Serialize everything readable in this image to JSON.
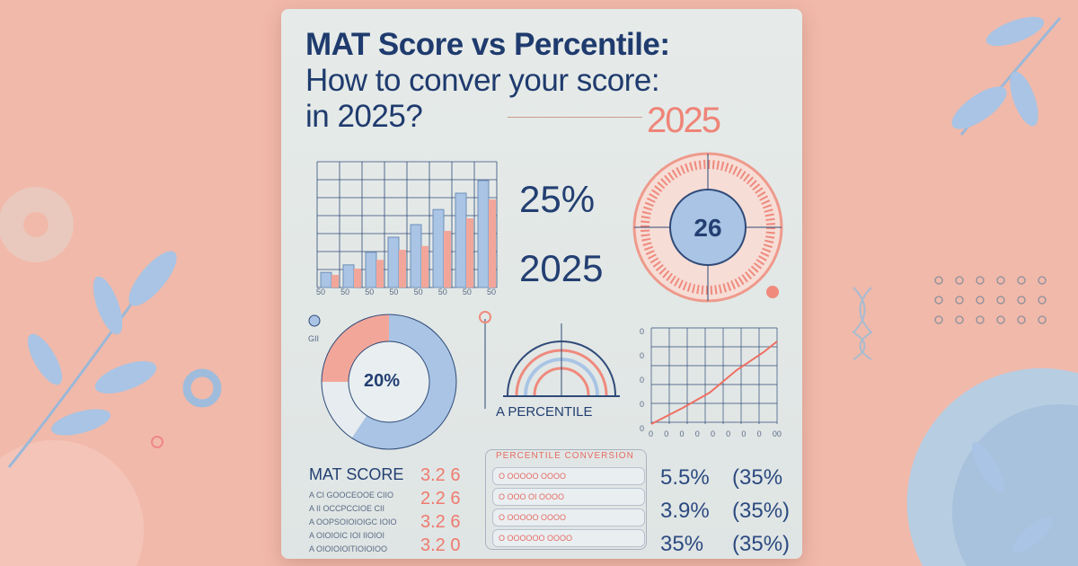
{
  "title": {
    "line1": "MAT Score vs Percentile:",
    "line2": "How to conver your score:",
    "line3": "in  2025?",
    "badge_year": "2025"
  },
  "bar_chart": {
    "x_tick_labels": [
      "50",
      "50",
      "50",
      "50",
      "50",
      "50",
      "50",
      "50"
    ],
    "blue_levels": [
      0.12,
      0.18,
      0.28,
      0.4,
      0.5,
      0.62,
      0.75,
      0.85
    ],
    "pink_levels": [
      0.1,
      0.15,
      0.22,
      0.3,
      0.33,
      0.45,
      0.55,
      0.7
    ]
  },
  "stats": {
    "percent": "25%",
    "year": "2025"
  },
  "gauge": {
    "value": "26"
  },
  "donut": {
    "value": "20%",
    "label": "GII"
  },
  "arc": {
    "label": "A PERCENTILE"
  },
  "line_chart": {
    "x_tick_labels": [
      "0",
      "0",
      "0",
      "0",
      "0",
      "0",
      "0",
      "0",
      "00"
    ],
    "y_tick_labels": [
      "0",
      "0",
      "0",
      "0",
      "0"
    ]
  },
  "mat_score": {
    "heading": "MAT SCORE",
    "rows": [
      "A  CI GOOCEOOE CIIO",
      "A  II OCCPCCIOE CII",
      "A  OOPSOIOIOIGC IOIO",
      "A  OIOIOIC IOI IIOIOI",
      "A  OIOIOIOITIOIOIOO"
    ],
    "values": [
      "3.2 6",
      "2.2 6",
      "3.2 6",
      "3.2 0"
    ]
  },
  "percentile_table": {
    "heading": "PERCENTILE CONVERSION",
    "rows": [
      "O  OOOOO  OOOO",
      "O  OOO OI  OOOO",
      "O  OOOOO  OOOO",
      "O  OOOOOO  OOOO"
    ]
  },
  "percentages": {
    "col1": [
      "5.5%",
      "3.9%",
      "35%"
    ],
    "col2": [
      "(35%",
      "(35%)",
      "(35%)"
    ]
  },
  "colors": {
    "background": "#f1b9aa",
    "navy": "#1f3b6e",
    "accent_pink": "#ef7a6f",
    "accent_blue": "#a9c4e4"
  }
}
